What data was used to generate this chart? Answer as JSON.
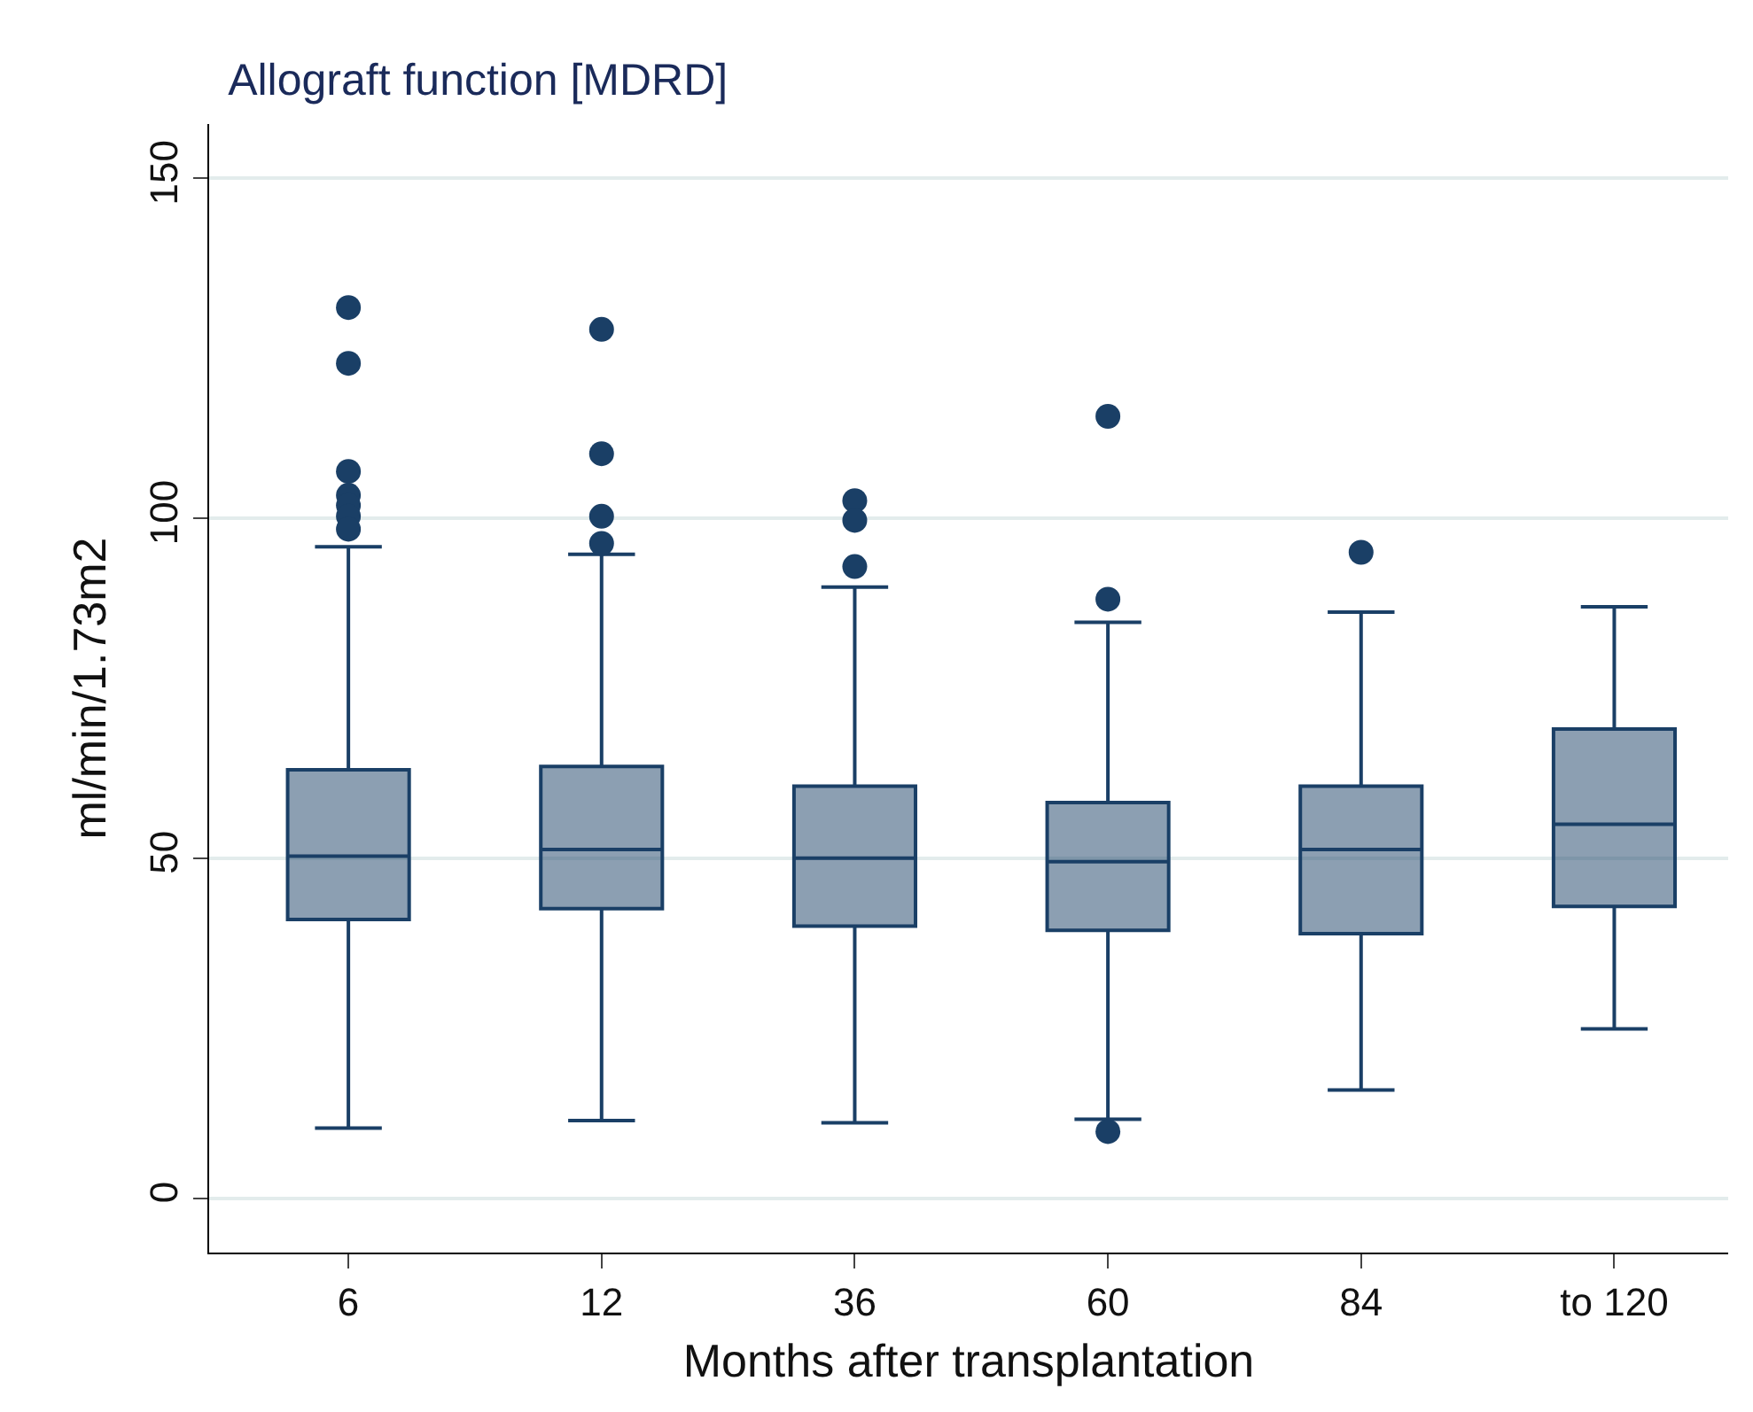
{
  "chart_data": {
    "type": "box",
    "title": "Allograft function [MDRD]",
    "xlabel": "Months after transplantation",
    "ylabel": "ml/min/1.73m2",
    "categories": [
      "6",
      "12",
      "36",
      "60",
      "84",
      "to 120"
    ],
    "series": [
      {
        "color": "#1a3f66",
        "boxes": [
          {
            "low": 10.3,
            "q1": 41,
            "median": 50.3,
            "q3": 63,
            "high": 95.8,
            "outliers": [
              131,
              122.8,
              106.9,
              103.4,
              101.9,
              100.3,
              98.4
            ]
          },
          {
            "low": 11.4,
            "q1": 42.6,
            "median": 51.3,
            "q3": 63.5,
            "high": 94.7,
            "outliers": [
              127.8,
              109.5,
              100.3,
              96.3
            ]
          },
          {
            "low": 11.1,
            "q1": 40,
            "median": 50,
            "q3": 60.6,
            "high": 89.9,
            "outliers": [
              102.6,
              99.7,
              92.9
            ]
          },
          {
            "low": 11.6,
            "q1": 39.4,
            "median": 49.5,
            "q3": 58.2,
            "high": 84.7,
            "outliers": [
              115,
              88.1,
              9.8
            ]
          },
          {
            "low": 15.9,
            "q1": 38.9,
            "median": 51.3,
            "q3": 60.6,
            "high": 86.2,
            "outliers": [
              95
            ]
          },
          {
            "low": 24.9,
            "q1": 42.9,
            "median": 55,
            "q3": 69,
            "high": 87
          }
        ]
      }
    ],
    "ylim": [
      -8,
      158
    ],
    "yticks": [
      0,
      50,
      100,
      150
    ],
    "grid": "y",
    "marker": "circle"
  }
}
